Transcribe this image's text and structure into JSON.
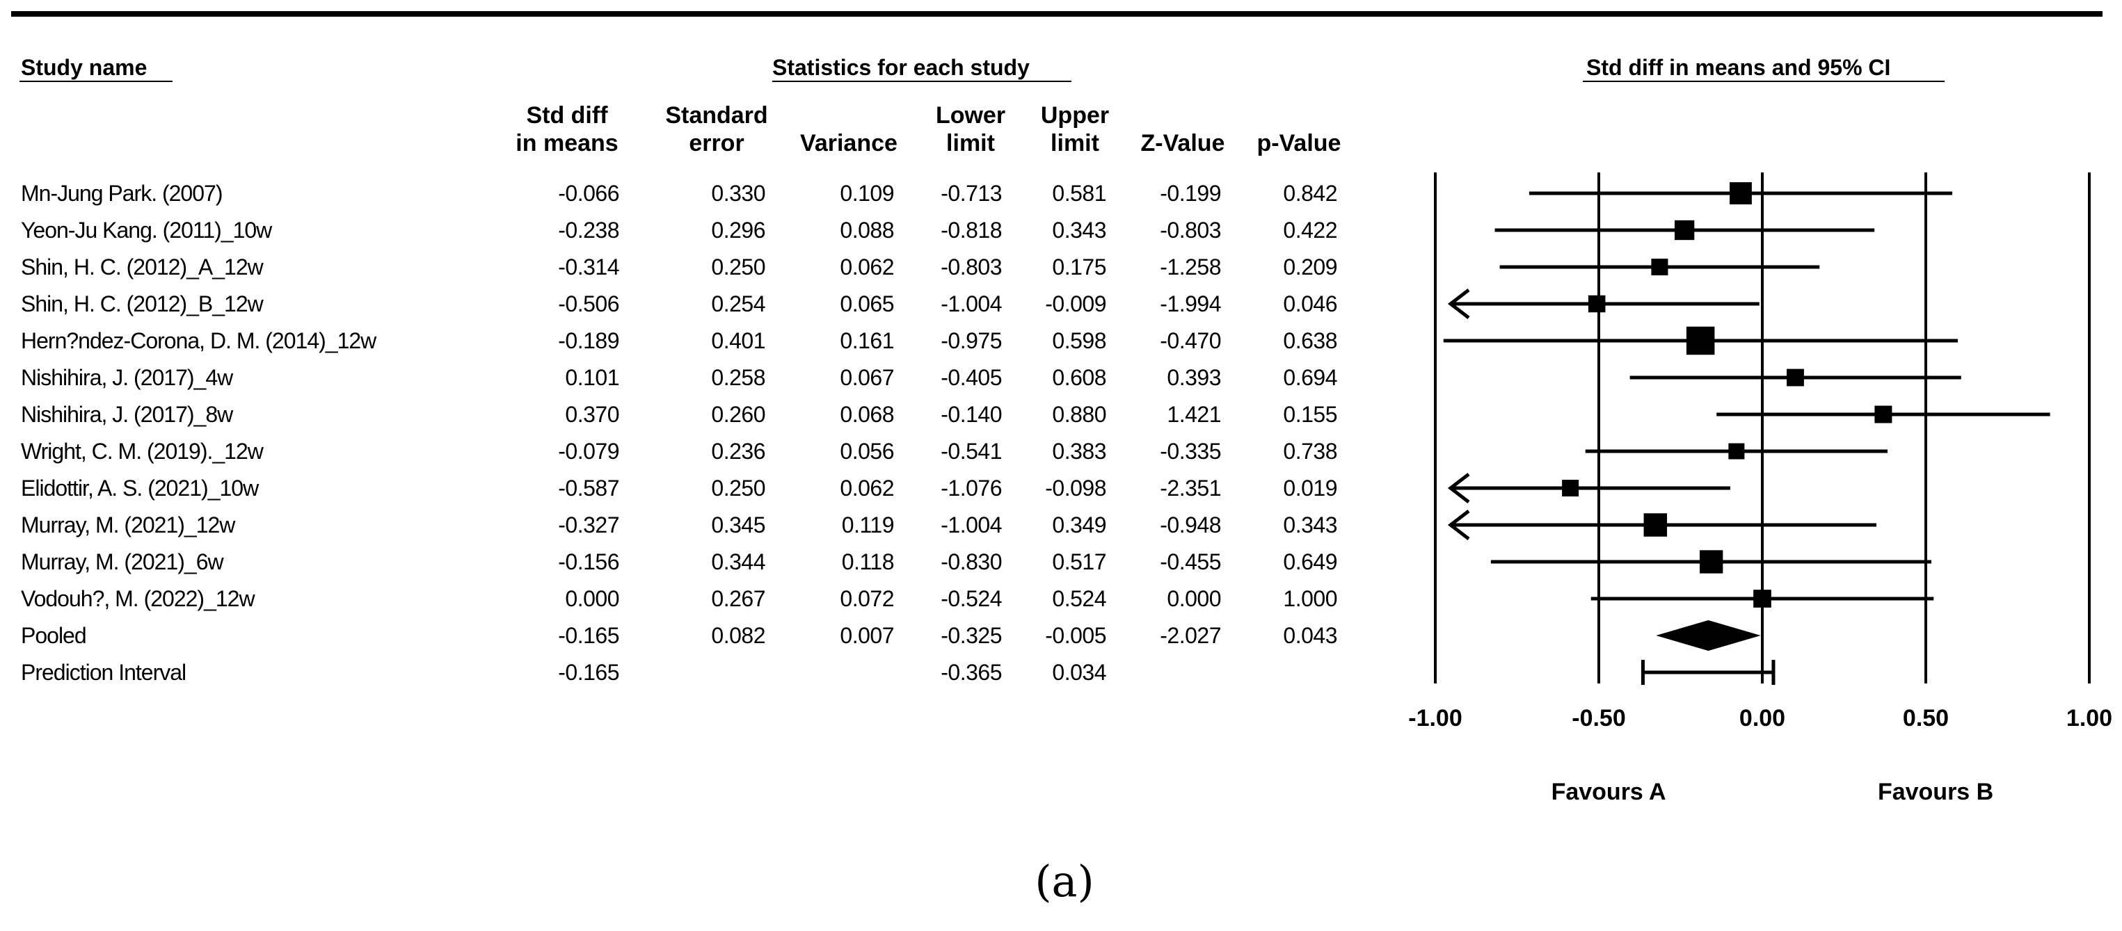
{
  "headers": {
    "study_name": "Study name",
    "statistics": "Statistics for each study",
    "plot_title": "Std diff in means and 95% CI"
  },
  "columns": [
    {
      "key": "smd",
      "label": [
        "Std diff",
        "in means"
      ]
    },
    {
      "key": "se",
      "label": [
        "Standard",
        "error"
      ]
    },
    {
      "key": "variance",
      "label": [
        "Variance"
      ]
    },
    {
      "key": "lower",
      "label": [
        "Lower",
        "limit"
      ]
    },
    {
      "key": "upper",
      "label": [
        "Upper",
        "limit"
      ]
    },
    {
      "key": "z",
      "label": [
        "Z-Value"
      ]
    },
    {
      "key": "p",
      "label": [
        "p-Value"
      ]
    }
  ],
  "rows": [
    {
      "name": "Mn-Jung Park. (2007)",
      "smd": "-0.066",
      "se": "0.330",
      "variance": "0.109",
      "lower": "-0.713",
      "upper": "0.581",
      "z": "-0.199",
      "p": "0.842"
    },
    {
      "name": "Yeon-Ju Kang. (2011)_10w",
      "smd": "-0.238",
      "se": "0.296",
      "variance": "0.088",
      "lower": "-0.818",
      "upper": "0.343",
      "z": "-0.803",
      "p": "0.422"
    },
    {
      "name": "Shin, H. C. (2012)_A_12w",
      "smd": "-0.314",
      "se": "0.250",
      "variance": "0.062",
      "lower": "-0.803",
      "upper": "0.175",
      "z": "-1.258",
      "p": "0.209"
    },
    {
      "name": "Shin, H. C. (2012)_B_12w",
      "smd": "-0.506",
      "se": "0.254",
      "variance": "0.065",
      "lower": "-1.004",
      "upper": "-0.009",
      "z": "-1.994",
      "p": "0.046"
    },
    {
      "name": "Hern?ndez-Corona, D. M. (2014)_12w",
      "smd": "-0.189",
      "se": "0.401",
      "variance": "0.161",
      "lower": "-0.975",
      "upper": "0.598",
      "z": "-0.470",
      "p": "0.638"
    },
    {
      "name": "Nishihira, J. (2017)_4w",
      "smd": "0.101",
      "se": "0.258",
      "variance": "0.067",
      "lower": "-0.405",
      "upper": "0.608",
      "z": "0.393",
      "p": "0.694"
    },
    {
      "name": "Nishihira, J. (2017)_8w",
      "smd": "0.370",
      "se": "0.260",
      "variance": "0.068",
      "lower": "-0.140",
      "upper": "0.880",
      "z": "1.421",
      "p": "0.155"
    },
    {
      "name": "Wright, C. M. (2019)._12w",
      "smd": "-0.079",
      "se": "0.236",
      "variance": "0.056",
      "lower": "-0.541",
      "upper": "0.383",
      "z": "-0.335",
      "p": "0.738"
    },
    {
      "name": "Elidottir, A. S. (2021)_10w",
      "smd": "-0.587",
      "se": "0.250",
      "variance": "0.062",
      "lower": "-1.076",
      "upper": "-0.098",
      "z": "-2.351",
      "p": "0.019"
    },
    {
      "name": "Murray, M. (2021)_12w",
      "smd": "-0.327",
      "se": "0.345",
      "variance": "0.119",
      "lower": "-1.004",
      "upper": "0.349",
      "z": "-0.948",
      "p": "0.343"
    },
    {
      "name": "Murray, M. (2021)_6w",
      "smd": "-0.156",
      "se": "0.344",
      "variance": "0.118",
      "lower": "-0.830",
      "upper": "0.517",
      "z": "-0.455",
      "p": "0.649"
    },
    {
      "name": "Vodouh?, M. (2022)_12w",
      "smd": "0.000",
      "se": "0.267",
      "variance": "0.072",
      "lower": "-0.524",
      "upper": "0.524",
      "z": "0.000",
      "p": "1.000"
    },
    {
      "name": "Pooled",
      "smd": "-0.165",
      "se": "0.082",
      "variance": "0.007",
      "lower": "-0.325",
      "upper": "-0.005",
      "z": "-2.027",
      "p": "0.043"
    },
    {
      "name": "Prediction Interval",
      "smd": "-0.165",
      "se": "",
      "variance": "",
      "lower": "-0.365",
      "upper": "0.034",
      "z": "",
      "p": ""
    }
  ],
  "chart_data": {
    "type": "forest",
    "title": "Std diff in means and 95% CI",
    "xlim": [
      -1.0,
      1.0
    ],
    "ticks": [
      -1.0,
      -0.5,
      0.0,
      0.5,
      1.0
    ],
    "tick_labels": [
      "-1.00",
      "-0.50",
      "0.00",
      "0.50",
      "1.00"
    ],
    "favours_left": "Favours A",
    "favours_right": "Favours B",
    "studies": [
      {
        "name": "Mn-Jung Park. (2007)",
        "smd": -0.066,
        "lower": -0.713,
        "upper": 0.581,
        "weight": 0.109
      },
      {
        "name": "Yeon-Ju Kang. (2011)_10w",
        "smd": -0.238,
        "lower": -0.818,
        "upper": 0.343,
        "weight": 0.088
      },
      {
        "name": "Shin, H. C. (2012)_A_12w",
        "smd": -0.314,
        "lower": -0.803,
        "upper": 0.175,
        "weight": 0.062
      },
      {
        "name": "Shin, H. C. (2012)_B_12w",
        "smd": -0.506,
        "lower": -1.004,
        "upper": -0.009,
        "weight": 0.065
      },
      {
        "name": "Hern?ndez-Corona, D. M. (2014)_12w",
        "smd": -0.189,
        "lower": -0.975,
        "upper": 0.598,
        "weight": 0.161
      },
      {
        "name": "Nishihira, J. (2017)_4w",
        "smd": 0.101,
        "lower": -0.405,
        "upper": 0.608,
        "weight": 0.067
      },
      {
        "name": "Nishihira, J. (2017)_8w",
        "smd": 0.37,
        "lower": -0.14,
        "upper": 0.88,
        "weight": 0.068
      },
      {
        "name": "Wright, C. M. (2019)._12w",
        "smd": -0.079,
        "lower": -0.541,
        "upper": 0.383,
        "weight": 0.056
      },
      {
        "name": "Elidottir, A. S. (2021)_10w",
        "smd": -0.587,
        "lower": -1.076,
        "upper": -0.098,
        "weight": 0.062
      },
      {
        "name": "Murray, M. (2021)_12w",
        "smd": -0.327,
        "lower": -1.004,
        "upper": 0.349,
        "weight": 0.119
      },
      {
        "name": "Murray, M. (2021)_6w",
        "smd": -0.156,
        "lower": -0.83,
        "upper": 0.517,
        "weight": 0.118
      },
      {
        "name": "Vodouh?, M. (2022)_12w",
        "smd": 0.0,
        "lower": -0.524,
        "upper": 0.524,
        "weight": 0.072
      }
    ],
    "pooled": {
      "smd": -0.165,
      "lower": -0.325,
      "upper": -0.005
    },
    "prediction_interval": {
      "smd": -0.165,
      "lower": -0.365,
      "upper": 0.034
    }
  },
  "caption": "(a)"
}
